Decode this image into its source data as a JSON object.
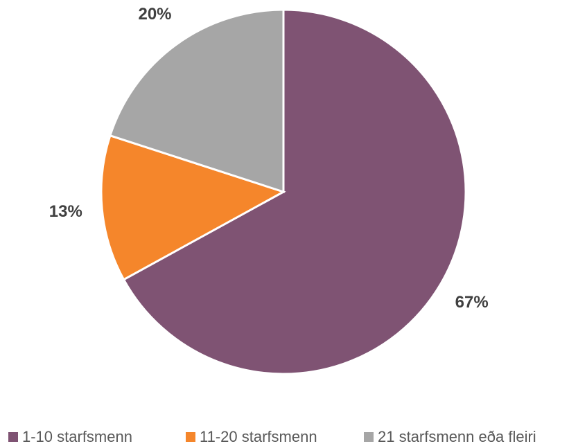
{
  "chart_data": {
    "type": "pie",
    "categories": [
      "1-10 starfsmenn",
      "11-20 starfsmenn",
      "21 starfsmenn eða fleiri"
    ],
    "values": [
      67,
      13,
      20
    ],
    "value_labels": [
      "67%",
      "13%",
      "20%"
    ],
    "colors": [
      "#7f5373",
      "#f5862b",
      "#a6a6a6"
    ],
    "legend": "bottom"
  }
}
